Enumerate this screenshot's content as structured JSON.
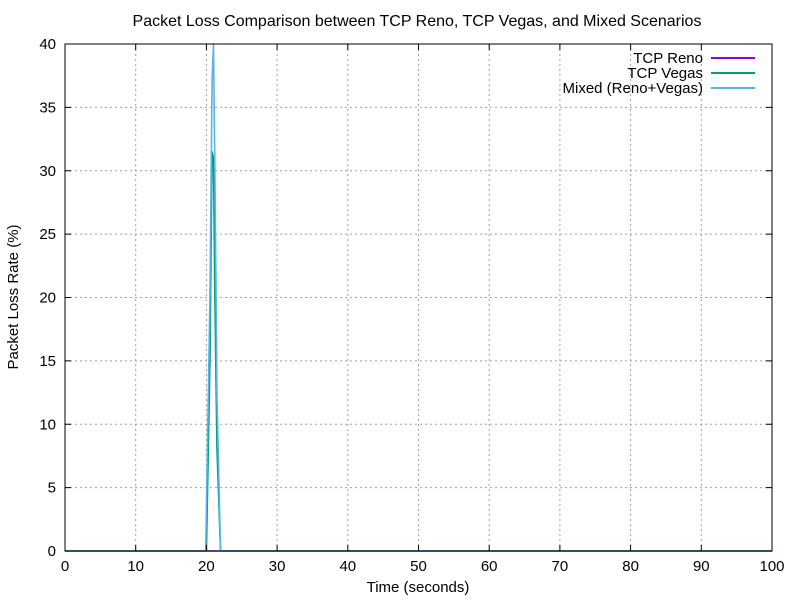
{
  "chart_data": {
    "type": "line",
    "title": "Packet Loss Comparison between TCP Reno, TCP Vegas, and Mixed Scenarios",
    "xlabel": "Time (seconds)",
    "ylabel": "Packet Loss Rate (%)",
    "xlim": [
      0,
      100
    ],
    "ylim": [
      0,
      40
    ],
    "xticks": [
      0,
      10,
      20,
      30,
      40,
      50,
      60,
      70,
      80,
      90,
      100
    ],
    "yticks": [
      0,
      5,
      10,
      15,
      20,
      25,
      30,
      35,
      40
    ],
    "grid": true,
    "legend_position": "top-right",
    "series": [
      {
        "name": "TCP Reno",
        "color": "#9400d3",
        "points": [
          [
            0,
            0
          ],
          [
            20,
            0
          ],
          [
            21,
            0
          ],
          [
            22,
            0
          ],
          [
            100,
            0
          ]
        ]
      },
      {
        "name": "TCP Vegas",
        "color": "#009e73",
        "points": [
          [
            0,
            0
          ],
          [
            20,
            0
          ],
          [
            20.5,
            15
          ],
          [
            20.8,
            31.5
          ],
          [
            21,
            31
          ],
          [
            21.2,
            20
          ],
          [
            21.5,
            8
          ],
          [
            22,
            0
          ],
          [
            100,
            0
          ]
        ]
      },
      {
        "name": "Mixed (Reno+Vegas)",
        "color": "#56b4e9",
        "points": [
          [
            0,
            0
          ],
          [
            19.9,
            0
          ],
          [
            20.5,
            20
          ],
          [
            20.8,
            37
          ],
          [
            21,
            40
          ],
          [
            21.2,
            30
          ],
          [
            21.5,
            12
          ],
          [
            22,
            0
          ],
          [
            100,
            0
          ]
        ]
      }
    ]
  }
}
